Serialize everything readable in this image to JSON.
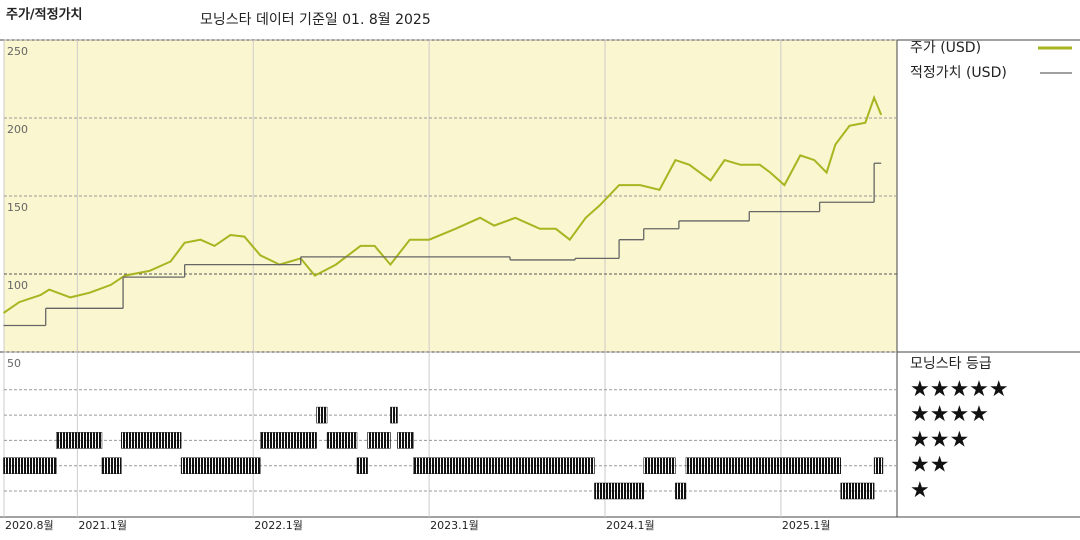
{
  "chart_data": {
    "type": "line",
    "title": "주가/적정가치",
    "subtitle": "모닝스타 데이터 기준일 01. 8월 2025",
    "xlim": [
      2020.583,
      2025.66
    ],
    "xticks": [
      {
        "value": 2020.583,
        "label": "2020.8월"
      },
      {
        "value": 2021,
        "label": "2021.1월"
      },
      {
        "value": 2022,
        "label": "2022.1월"
      },
      {
        "value": 2023,
        "label": "2023.1월"
      },
      {
        "value": 2024,
        "label": "2024.1월"
      },
      {
        "value": 2025,
        "label": "2025.1월"
      }
    ],
    "ylim": [
      50,
      250
    ],
    "yticks": [
      50,
      100,
      150,
      200,
      250
    ],
    "grid": true,
    "background": "#faf6cf",
    "series": [
      {
        "name": "주가 (USD)",
        "color": "#a9b421",
        "x": [
          2020.58,
          2020.67,
          2020.79,
          2020.84,
          2020.96,
          2021.07,
          2021.19,
          2021.27,
          2021.41,
          2021.53,
          2021.61,
          2021.7,
          2021.78,
          2021.87,
          2021.95,
          2022.04,
          2022.15,
          2022.27,
          2022.35,
          2022.47,
          2022.61,
          2022.69,
          2022.78,
          2022.89,
          2023.0,
          2023.15,
          2023.29,
          2023.37,
          2023.49,
          2023.63,
          2023.72,
          2023.8,
          2023.89,
          2023.97,
          2024.08,
          2024.2,
          2024.31,
          2024.4,
          2024.48,
          2024.6,
          2024.68,
          2024.77,
          2024.88,
          2024.94,
          2025.02,
          2025.11,
          2025.19,
          2025.26,
          2025.31,
          2025.39,
          2025.48,
          2025.53,
          2025.57
        ],
        "values": [
          75,
          82,
          86.5,
          90,
          85,
          88,
          93,
          99,
          102,
          108,
          120,
          122,
          118,
          125,
          124,
          112,
          106,
          110,
          99,
          106,
          118,
          118,
          106,
          122,
          122,
          129,
          136,
          131,
          136,
          129,
          129,
          122,
          136,
          144,
          157,
          157,
          154,
          173,
          170,
          160,
          173,
          170,
          170,
          165,
          157,
          176,
          173,
          165,
          183,
          195,
          197,
          213,
          202
        ]
      },
      {
        "name": "적정가치 (USD)",
        "color": "#666666",
        "drawstyle": "steps-post",
        "x": [
          2020.58,
          2020.82,
          2021.26,
          2021.61,
          2022.27,
          2023.46,
          2023.83,
          2024.08,
          2024.22,
          2024.42,
          2024.82,
          2025.22,
          2025.53,
          2025.57
        ],
        "values": [
          67,
          78,
          98,
          106,
          111,
          109,
          110,
          122,
          129,
          134,
          140,
          146,
          171,
          171
        ]
      }
    ],
    "rating": {
      "title": "모닝스타 등급",
      "color": "#111111",
      "bins": [
        2020.58,
        2020.88,
        2021.14,
        2021.25,
        2021.59,
        2022.04,
        2022.36,
        2022.42,
        2022.59,
        2022.65,
        2022.78,
        2022.82,
        2022.91,
        2023.94,
        2024.22,
        2024.4,
        2024.46,
        2025.34,
        2025.53,
        2025.58
      ],
      "values": [
        2,
        3,
        2,
        3,
        2,
        3,
        4,
        3,
        2,
        3,
        4,
        3,
        2,
        1,
        2,
        1,
        2,
        1,
        2
      ],
      "levels": [
        {
          "value": 5,
          "label": "★★★★★"
        },
        {
          "value": 4,
          "label": "★★★★"
        },
        {
          "value": 3,
          "label": "★★★"
        },
        {
          "value": 2,
          "label": "★★"
        },
        {
          "value": 1,
          "label": "★"
        }
      ]
    }
  }
}
